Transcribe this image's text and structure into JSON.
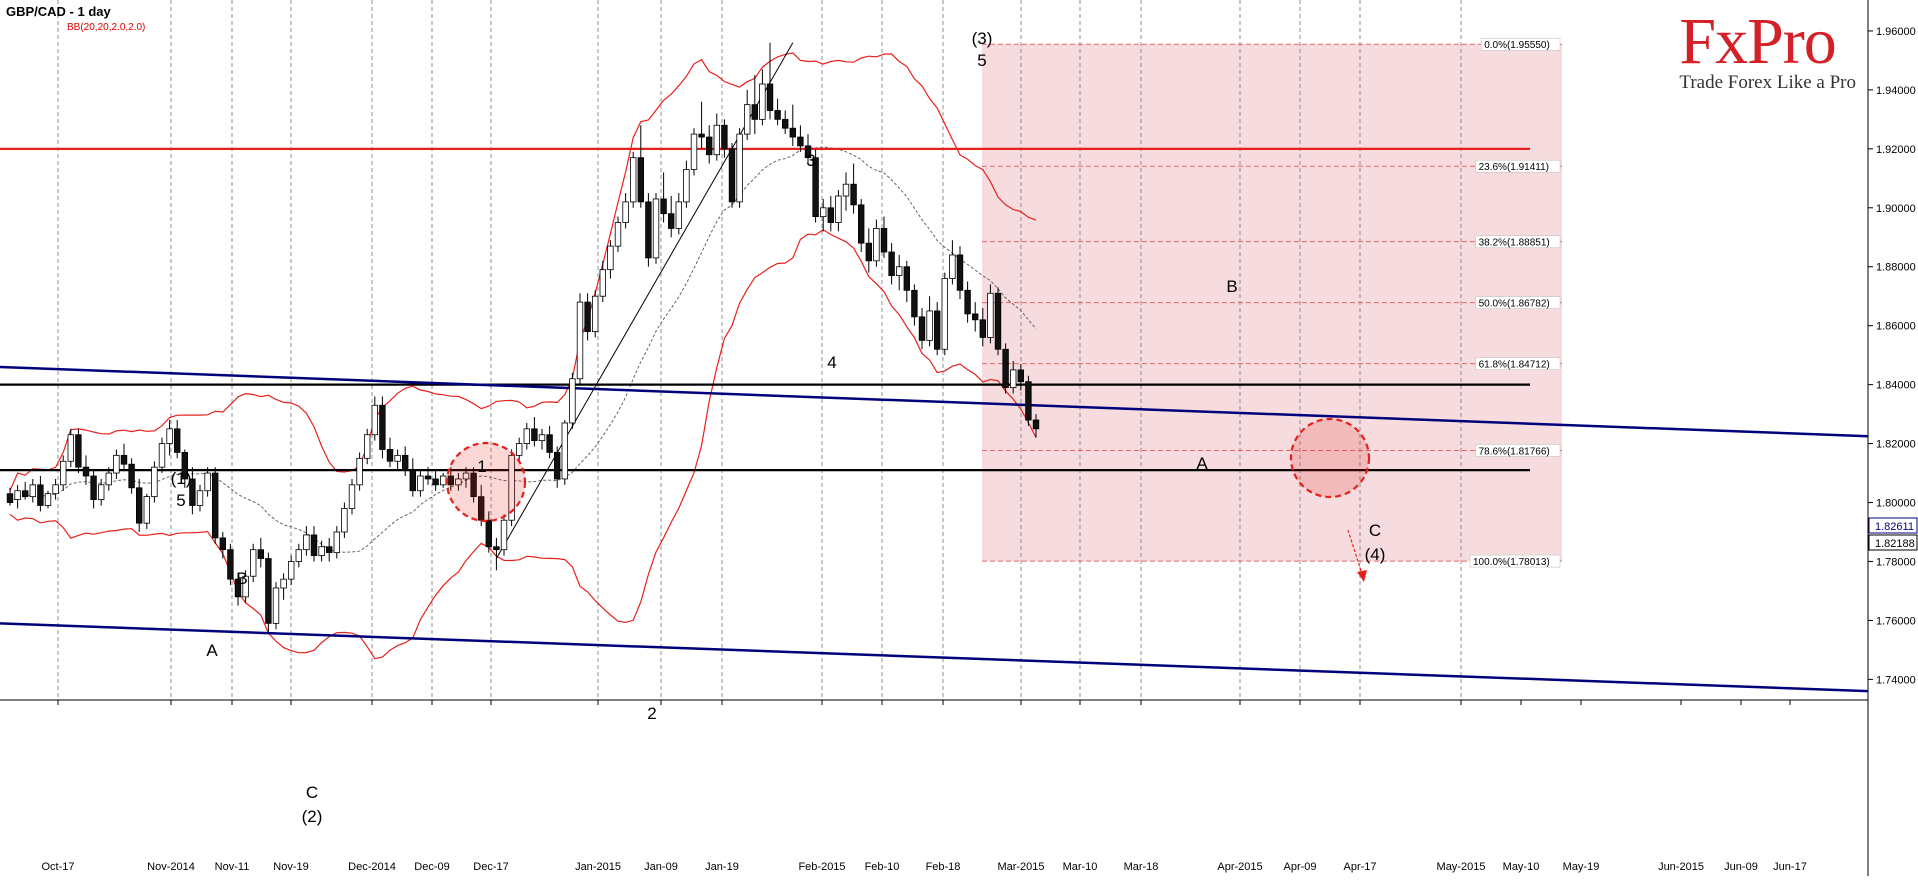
{
  "header": {
    "title": "GBP/CAD - 1 day",
    "indicator": "BB(20,20,2.0,2.0)"
  },
  "logo": {
    "brand": "FxPro",
    "tagline": "Trade Forex Like a Pro"
  },
  "colors": {
    "bull_candle": "#ffffff",
    "bear_candle": "#111111",
    "bollinger": "#e8201c",
    "resistance": "#e8201c",
    "support": "#000000",
    "channel": "#00007a",
    "fib_zone": "#f4d6d8",
    "fib_line": "#e0676c"
  },
  "chart_data": {
    "type": "candlestick",
    "title": "GBP/CAD - 1 day",
    "x_labels": [
      "Oct-17",
      "Nov-2014",
      "Nov-11",
      "Nov-19",
      "Dec-2014",
      "Dec-09",
      "Dec-17",
      "Jan-2015",
      "Jan-09",
      "Jan-19",
      "Feb-2015",
      "Feb-10",
      "Feb-18",
      "Mar-2015",
      "Mar-10",
      "Mar-18",
      "Apr-2015",
      "Apr-09",
      "Apr-17",
      "May-2015",
      "May-10",
      "May-19",
      "Jun-2015",
      "Jun-09",
      "Jun-17"
    ],
    "y_ticks": [
      "1.96000",
      "1.94000",
      "1.92000",
      "1.90000",
      "1.88000",
      "1.86000",
      "1.84000",
      "1.82000",
      "1.80000",
      "1.78000",
      "1.76000",
      "1.74000"
    ],
    "ylim": [
      1.733,
      1.9705
    ],
    "grid": "vertical-dashed",
    "current_price_labels": [
      "1.82611",
      "1.82188"
    ],
    "horizontal_levels": [
      {
        "name": "resistance",
        "price": 1.92
      },
      {
        "name": "support-upper",
        "price": 1.84
      },
      {
        "name": "support-lower",
        "price": 1.811
      }
    ],
    "channel_lines": [
      {
        "name": "upper-channel",
        "start": [
          0,
          1.846
        ],
        "end": [
          1918,
          1.8225
        ]
      },
      {
        "name": "lower-channel",
        "start": [
          0,
          1.759
        ],
        "end": [
          1918,
          1.736
        ]
      }
    ],
    "fibonacci": {
      "high": 1.9555,
      "low": 1.78013,
      "levels": [
        {
          "label": "0.0%(1.95550)",
          "price": 1.9555
        },
        {
          "label": "23.6%(1.91411)",
          "price": 1.91411
        },
        {
          "label": "38.2%(1.88851)",
          "price": 1.88851
        },
        {
          "label": "50.0%(1.86782)",
          "price": 1.86782
        },
        {
          "label": "61.8%(1.84712)",
          "price": 1.84712
        },
        {
          "label": "78.6%(1.81766)",
          "price": 1.81766
        },
        {
          "label": "100.0%(1.78013)",
          "price": 1.78013
        }
      ]
    },
    "wave_labels": [
      "(1)",
      "5",
      "1",
      "B",
      "A",
      "C",
      "(2)",
      "2",
      "3",
      "4",
      "(3)",
      "5",
      "B",
      "A",
      "C",
      "(4)"
    ],
    "candles": [
      [
        1.803,
        1.805,
        1.799,
        1.8
      ],
      [
        1.801,
        1.806,
        1.798,
        1.804
      ],
      [
        1.804,
        1.807,
        1.801,
        1.802
      ],
      [
        1.802,
        1.808,
        1.8,
        1.806
      ],
      [
        1.806,
        1.809,
        1.797,
        1.799
      ],
      [
        1.799,
        1.804,
        1.798,
        1.803
      ],
      [
        1.803,
        1.808,
        1.801,
        1.806
      ],
      [
        1.806,
        1.816,
        1.804,
        1.814
      ],
      [
        1.814,
        1.825,
        1.812,
        1.823
      ],
      [
        1.823,
        1.825,
        1.81,
        1.812
      ],
      [
        1.812,
        1.816,
        1.806,
        1.809
      ],
      [
        1.809,
        1.811,
        1.798,
        1.801
      ],
      [
        1.801,
        1.808,
        1.799,
        1.806
      ],
      [
        1.806,
        1.812,
        1.804,
        1.81
      ],
      [
        1.81,
        1.818,
        1.808,
        1.816
      ],
      [
        1.816,
        1.82,
        1.811,
        1.813
      ],
      [
        1.813,
        1.815,
        1.803,
        1.805
      ],
      [
        1.805,
        1.808,
        1.79,
        1.793
      ],
      [
        1.793,
        1.803,
        1.791,
        1.802
      ],
      [
        1.802,
        1.814,
        1.8,
        1.812
      ],
      [
        1.812,
        1.822,
        1.81,
        1.82
      ],
      [
        1.82,
        1.828,
        1.816,
        1.825
      ],
      [
        1.825,
        1.828,
        1.815,
        1.817
      ],
      [
        1.817,
        1.818,
        1.805,
        1.808
      ],
      [
        1.808,
        1.812,
        1.796,
        1.799
      ],
      [
        1.799,
        1.806,
        1.797,
        1.804
      ],
      [
        1.804,
        1.812,
        1.802,
        1.81
      ],
      [
        1.81,
        1.812,
        1.786,
        1.788
      ],
      [
        1.788,
        1.79,
        1.781,
        1.784
      ],
      [
        1.784,
        1.786,
        1.772,
        1.774
      ],
      [
        1.774,
        1.776,
        1.765,
        1.768
      ],
      [
        1.768,
        1.777,
        1.766,
        1.775
      ],
      [
        1.775,
        1.786,
        1.773,
        1.784
      ],
      [
        1.784,
        1.788,
        1.778,
        1.781
      ],
      [
        1.781,
        1.783,
        1.756,
        1.759
      ],
      [
        1.759,
        1.773,
        1.757,
        1.771
      ],
      [
        1.771,
        1.776,
        1.767,
        1.774
      ],
      [
        1.774,
        1.782,
        1.772,
        1.78
      ],
      [
        1.78,
        1.786,
        1.778,
        1.784
      ],
      [
        1.784,
        1.792,
        1.782,
        1.789
      ],
      [
        1.789,
        1.792,
        1.78,
        1.782
      ],
      [
        1.782,
        1.787,
        1.78,
        1.785
      ],
      [
        1.785,
        1.788,
        1.78,
        1.783
      ],
      [
        1.783,
        1.792,
        1.781,
        1.79
      ],
      [
        1.79,
        1.8,
        1.788,
        1.798
      ],
      [
        1.798,
        1.808,
        1.796,
        1.806
      ],
      [
        1.806,
        1.817,
        1.804,
        1.815
      ],
      [
        1.815,
        1.825,
        1.813,
        1.823
      ],
      [
        1.823,
        1.836,
        1.821,
        1.833
      ],
      [
        1.833,
        1.836,
        1.815,
        1.818
      ],
      [
        1.818,
        1.822,
        1.812,
        1.814
      ],
      [
        1.814,
        1.818,
        1.811,
        1.816
      ],
      [
        1.816,
        1.819,
        1.809,
        1.811
      ],
      [
        1.811,
        1.815,
        1.802,
        1.804
      ],
      [
        1.804,
        1.811,
        1.802,
        1.809
      ],
      [
        1.809,
        1.812,
        1.806,
        1.808
      ],
      [
        1.808,
        1.811,
        1.804,
        1.806
      ],
      [
        1.806,
        1.81,
        1.805,
        1.809
      ],
      [
        1.809,
        1.812,
        1.804,
        1.806
      ],
      [
        1.806,
        1.81,
        1.804,
        1.808
      ],
      [
        1.808,
        1.812,
        1.805,
        1.81
      ],
      [
        1.81,
        1.812,
        1.8,
        1.802
      ],
      [
        1.802,
        1.806,
        1.792,
        1.794
      ],
      [
        1.794,
        1.797,
        1.783,
        1.785
      ],
      [
        1.785,
        1.788,
        1.777,
        1.784
      ],
      [
        1.784,
        1.796,
        1.782,
        1.794
      ],
      [
        1.794,
        1.818,
        1.792,
        1.816
      ],
      [
        1.816,
        1.822,
        1.814,
        1.82
      ],
      [
        1.82,
        1.827,
        1.818,
        1.825
      ],
      [
        1.825,
        1.829,
        1.819,
        1.821
      ],
      [
        1.821,
        1.825,
        1.818,
        1.823
      ],
      [
        1.823,
        1.826,
        1.815,
        1.817
      ],
      [
        1.817,
        1.819,
        1.805,
        1.808
      ],
      [
        1.808,
        1.828,
        1.806,
        1.827
      ],
      [
        1.827,
        1.844,
        1.825,
        1.842
      ],
      [
        1.842,
        1.871,
        1.84,
        1.868
      ],
      [
        1.868,
        1.871,
        1.855,
        1.858
      ],
      [
        1.858,
        1.872,
        1.856,
        1.87
      ],
      [
        1.87,
        1.882,
        1.868,
        1.879
      ],
      [
        1.879,
        1.889,
        1.876,
        1.887
      ],
      [
        1.887,
        1.897,
        1.885,
        1.895
      ],
      [
        1.895,
        1.905,
        1.893,
        1.902
      ],
      [
        1.902,
        1.919,
        1.9,
        1.917
      ],
      [
        1.917,
        1.928,
        1.9,
        1.902
      ],
      [
        1.902,
        1.905,
        1.88,
        1.883
      ],
      [
        1.883,
        1.905,
        1.881,
        1.903
      ],
      [
        1.903,
        1.912,
        1.895,
        1.898
      ],
      [
        1.898,
        1.904,
        1.89,
        1.893
      ],
      [
        1.893,
        1.905,
        1.891,
        1.902
      ],
      [
        1.902,
        1.916,
        1.9,
        1.913
      ],
      [
        1.913,
        1.927,
        1.911,
        1.925
      ],
      [
        1.925,
        1.936,
        1.92,
        1.924
      ],
      [
        1.924,
        1.928,
        1.915,
        1.918
      ],
      [
        1.918,
        1.932,
        1.916,
        1.928
      ],
      [
        1.928,
        1.93,
        1.917,
        1.92
      ],
      [
        1.92,
        1.922,
        1.9,
        1.902
      ],
      [
        1.902,
        1.927,
        1.9,
        1.925
      ],
      [
        1.925,
        1.94,
        1.923,
        1.935
      ],
      [
        1.935,
        1.945,
        1.925,
        1.93
      ],
      [
        1.93,
        1.947,
        1.928,
        1.942
      ],
      [
        1.942,
        1.956,
        1.93,
        1.933
      ],
      [
        1.933,
        1.937,
        1.928,
        1.93
      ],
      [
        1.93,
        1.933,
        1.925,
        1.927
      ],
      [
        1.927,
        1.935,
        1.921,
        1.924
      ],
      [
        1.924,
        1.928,
        1.919,
        1.921
      ],
      [
        1.921,
        1.925,
        1.915,
        1.917
      ],
      [
        1.917,
        1.92,
        1.895,
        1.897
      ],
      [
        1.897,
        1.903,
        1.892,
        1.9
      ],
      [
        1.9,
        1.904,
        1.892,
        1.895
      ],
      [
        1.895,
        1.906,
        1.892,
        1.904
      ],
      [
        1.904,
        1.912,
        1.899,
        1.908
      ],
      [
        1.908,
        1.915,
        1.898,
        1.901
      ],
      [
        1.901,
        1.903,
        1.885,
        1.888
      ],
      [
        1.888,
        1.893,
        1.878,
        1.882
      ],
      [
        1.882,
        1.896,
        1.88,
        1.893
      ],
      [
        1.893,
        1.897,
        1.883,
        1.885
      ],
      [
        1.885,
        1.888,
        1.874,
        1.877
      ],
      [
        1.877,
        1.884,
        1.872,
        1.88
      ],
      [
        1.88,
        1.882,
        1.868,
        1.872
      ],
      [
        1.872,
        1.874,
        1.86,
        1.863
      ],
      [
        1.863,
        1.866,
        1.852,
        1.855
      ],
      [
        1.855,
        1.87,
        1.853,
        1.865
      ],
      [
        1.865,
        1.868,
        1.85,
        1.852
      ],
      [
        1.852,
        1.878,
        1.85,
        1.876
      ],
      [
        1.876,
        1.889,
        1.874,
        1.884
      ],
      [
        1.884,
        1.887,
        1.869,
        1.872
      ],
      [
        1.872,
        1.875,
        1.861,
        1.864
      ],
      [
        1.864,
        1.868,
        1.858,
        1.862
      ],
      [
        1.862,
        1.866,
        1.853,
        1.856
      ],
      [
        1.856,
        1.874,
        1.854,
        1.871
      ],
      [
        1.871,
        1.873,
        1.85,
        1.852
      ],
      [
        1.852,
        1.854,
        1.837,
        1.839
      ],
      [
        1.839,
        1.848,
        1.837,
        1.845
      ],
      [
        1.845,
        1.847,
        1.838,
        1.841
      ],
      [
        1.841,
        1.843,
        1.826,
        1.828
      ],
      [
        1.828,
        1.83,
        1.822,
        1.825
      ]
    ]
  }
}
